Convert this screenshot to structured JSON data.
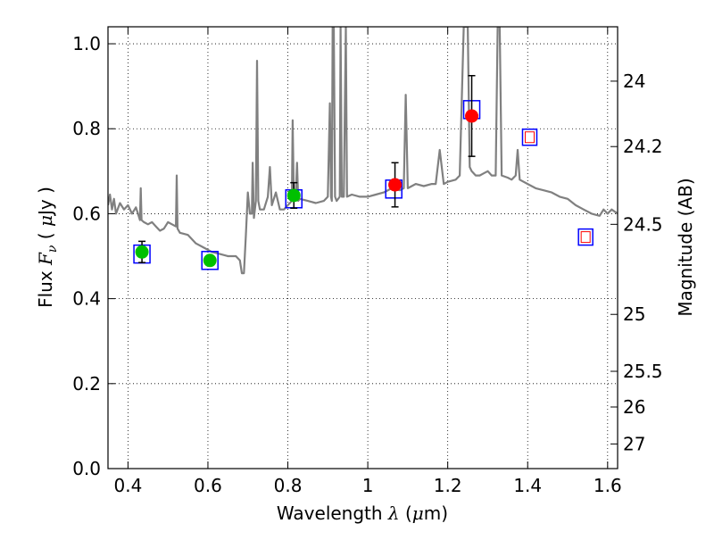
{
  "chart_data": {
    "type": "scatter",
    "xlabel": "Wavelength  λ (μm)",
    "ylabel": "Flux  F_ν  ( μJy )",
    "ylabel_right": "Magnitude (AB)",
    "xlim": [
      0.35,
      1.625
    ],
    "ylim": [
      0.0,
      1.04
    ],
    "grid": true,
    "x_ticks": [
      0.4,
      0.6,
      0.8,
      1.0,
      1.2,
      1.4,
      1.6
    ],
    "x_tick_labels": [
      "0.4",
      "0.6",
      "0.8",
      "1",
      "1.2",
      "1.4",
      "1.6"
    ],
    "y_ticks": [
      0.0,
      0.2,
      0.4,
      0.6,
      0.8,
      1.0
    ],
    "y_tick_labels": [
      "0.0",
      "0.2",
      "0.4",
      "0.6",
      "0.8",
      "1.0"
    ],
    "right_ticks": [
      {
        "label": "24",
        "flux": 0.912
      },
      {
        "label": "24.2",
        "flux": 0.758
      },
      {
        "label": "24.5",
        "flux": 0.575
      },
      {
        "label": "25",
        "flux": 0.363
      },
      {
        "label": "25.5",
        "flux": 0.229
      },
      {
        "label": "26",
        "flux": 0.145
      },
      {
        "label": "27",
        "flux": 0.058
      }
    ],
    "series": [
      {
        "kind": "line",
        "color": "#808080",
        "points": [
          [
            0.35,
            0.62
          ],
          [
            0.355,
            0.645
          ],
          [
            0.36,
            0.61
          ],
          [
            0.365,
            0.635
          ],
          [
            0.37,
            0.6
          ],
          [
            0.38,
            0.625
          ],
          [
            0.39,
            0.61
          ],
          [
            0.4,
            0.62
          ],
          [
            0.41,
            0.6
          ],
          [
            0.42,
            0.615
          ],
          [
            0.425,
            0.6
          ],
          [
            0.43,
            0.585
          ],
          [
            0.432,
            0.66
          ],
          [
            0.434,
            0.585
          ],
          [
            0.44,
            0.58
          ],
          [
            0.45,
            0.575
          ],
          [
            0.46,
            0.58
          ],
          [
            0.47,
            0.57
          ],
          [
            0.48,
            0.56
          ],
          [
            0.49,
            0.565
          ],
          [
            0.5,
            0.58
          ],
          [
            0.51,
            0.575
          ],
          [
            0.52,
            0.57
          ],
          [
            0.522,
            0.69
          ],
          [
            0.524,
            0.565
          ],
          [
            0.53,
            0.555
          ],
          [
            0.55,
            0.55
          ],
          [
            0.57,
            0.53
          ],
          [
            0.59,
            0.52
          ],
          [
            0.61,
            0.51
          ],
          [
            0.63,
            0.505
          ],
          [
            0.65,
            0.5
          ],
          [
            0.67,
            0.5
          ],
          [
            0.68,
            0.49
          ],
          [
            0.685,
            0.46
          ],
          [
            0.69,
            0.46
          ],
          [
            0.695,
            0.55
          ],
          [
            0.7,
            0.65
          ],
          [
            0.705,
            0.6
          ],
          [
            0.71,
            0.6
          ],
          [
            0.712,
            0.72
          ],
          [
            0.715,
            0.59
          ],
          [
            0.72,
            0.63
          ],
          [
            0.723,
            0.96
          ],
          [
            0.726,
            0.63
          ],
          [
            0.73,
            0.61
          ],
          [
            0.74,
            0.61
          ],
          [
            0.75,
            0.64
          ],
          [
            0.755,
            0.71
          ],
          [
            0.76,
            0.62
          ],
          [
            0.77,
            0.65
          ],
          [
            0.78,
            0.61
          ],
          [
            0.79,
            0.61
          ],
          [
            0.8,
            0.62
          ],
          [
            0.81,
            0.63
          ],
          [
            0.812,
            0.82
          ],
          [
            0.815,
            0.64
          ],
          [
            0.82,
            0.65
          ],
          [
            0.823,
            0.72
          ],
          [
            0.826,
            0.63
          ],
          [
            0.83,
            0.635
          ],
          [
            0.85,
            0.63
          ],
          [
            0.87,
            0.625
          ],
          [
            0.89,
            0.63
          ],
          [
            0.9,
            0.64
          ],
          [
            0.905,
            0.86
          ],
          [
            0.908,
            0.64
          ],
          [
            0.91,
            0.63
          ],
          [
            0.912,
            1.04
          ],
          [
            0.915,
            1.04
          ],
          [
            0.918,
            0.64
          ],
          [
            0.922,
            0.63
          ],
          [
            0.93,
            0.64
          ],
          [
            0.932,
            1.04
          ],
          [
            0.935,
            0.64
          ],
          [
            0.94,
            0.64
          ],
          [
            0.945,
            1.04
          ],
          [
            0.948,
            0.64
          ],
          [
            0.96,
            0.645
          ],
          [
            0.98,
            0.64
          ],
          [
            1.0,
            0.64
          ],
          [
            1.02,
            0.645
          ],
          [
            1.04,
            0.65
          ],
          [
            1.06,
            0.66
          ],
          [
            1.08,
            0.655
          ],
          [
            1.09,
            0.66
          ],
          [
            1.095,
            0.88
          ],
          [
            1.1,
            0.66
          ],
          [
            1.12,
            0.67
          ],
          [
            1.14,
            0.665
          ],
          [
            1.16,
            0.67
          ],
          [
            1.17,
            0.67
          ],
          [
            1.18,
            0.75
          ],
          [
            1.19,
            0.67
          ],
          [
            1.2,
            0.675
          ],
          [
            1.22,
            0.68
          ],
          [
            1.23,
            0.69
          ],
          [
            1.24,
            1.04
          ],
          [
            1.25,
            1.04
          ],
          [
            1.255,
            0.71
          ],
          [
            1.26,
            0.7
          ],
          [
            1.27,
            0.69
          ],
          [
            1.28,
            0.69
          ],
          [
            1.29,
            0.695
          ],
          [
            1.3,
            0.7
          ],
          [
            1.31,
            0.69
          ],
          [
            1.32,
            0.69
          ],
          [
            1.325,
            1.04
          ],
          [
            1.33,
            1.04
          ],
          [
            1.335,
            0.69
          ],
          [
            1.35,
            0.685
          ],
          [
            1.36,
            0.68
          ],
          [
            1.37,
            0.69
          ],
          [
            1.375,
            0.75
          ],
          [
            1.38,
            0.68
          ],
          [
            1.4,
            0.67
          ],
          [
            1.42,
            0.66
          ],
          [
            1.44,
            0.655
          ],
          [
            1.46,
            0.65
          ],
          [
            1.48,
            0.64
          ],
          [
            1.5,
            0.635
          ],
          [
            1.52,
            0.62
          ],
          [
            1.54,
            0.61
          ],
          [
            1.56,
            0.6
          ],
          [
            1.58,
            0.595
          ],
          [
            1.59,
            0.61
          ],
          [
            1.6,
            0.6
          ],
          [
            1.61,
            0.61
          ],
          [
            1.625,
            0.6
          ]
        ]
      },
      {
        "kind": "points",
        "marker": "square-open",
        "color": "#0000ff",
        "points": [
          [
            0.435,
            0.505
          ],
          [
            0.605,
            0.49
          ],
          [
            0.815,
            0.635
          ],
          [
            1.065,
            0.658
          ],
          [
            1.26,
            0.845
          ]
        ]
      },
      {
        "kind": "points",
        "marker": "circle",
        "color": "#00c000",
        "points": [
          [
            0.435,
            0.51,
            0.025
          ],
          [
            0.605,
            0.49,
            0.01
          ],
          [
            0.815,
            0.643,
            0.03
          ]
        ]
      },
      {
        "kind": "points",
        "marker": "circle",
        "color": "#ff0000",
        "points": [
          [
            1.068,
            0.668,
            0.052
          ],
          [
            1.26,
            0.83,
            0.095
          ]
        ]
      },
      {
        "kind": "points",
        "marker": "square-nested",
        "color": "#0000ff",
        "inner_color": "#ff0000",
        "points": [
          [
            1.405,
            0.78
          ],
          [
            1.545,
            0.545
          ]
        ]
      }
    ]
  }
}
